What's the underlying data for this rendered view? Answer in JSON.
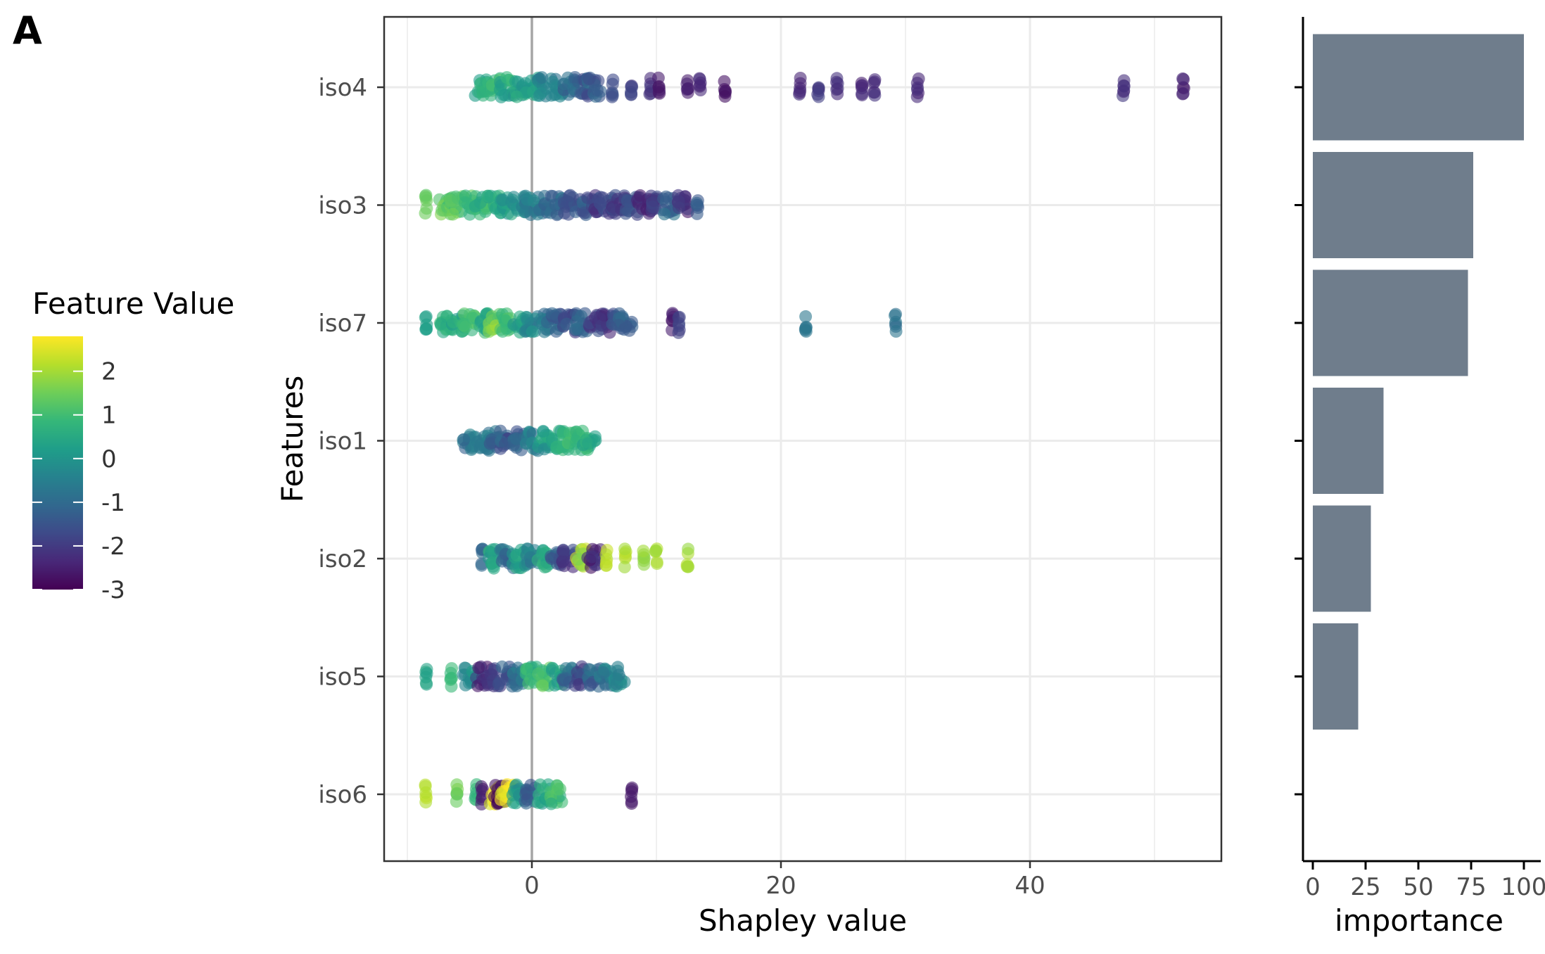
{
  "panel_label": "A",
  "colors": {
    "viridis_stops": [
      "#440154",
      "#482878",
      "#3e4a89",
      "#31688e",
      "#26828e",
      "#1f9e89",
      "#35b779",
      "#6ece58",
      "#b5de2b",
      "#fde725"
    ],
    "bar_fill": "#6f7d8c",
    "gridline": "#ebebeb",
    "zero_line": "#a6a6a6",
    "axis": "#000000",
    "tick_text": "#4d4d4d"
  },
  "chart_data": [
    {
      "type": "scatter",
      "subtype": "beeswarm / jittered strip (SHAP summary)",
      "xlabel": "Shapley value",
      "ylabel": "Features",
      "xlim": [
        -12,
        55
      ],
      "xticks": [
        0,
        20,
        40
      ],
      "x_minor_gridlines": [
        -10,
        10,
        30,
        50
      ],
      "vertical_reference_line_at": 0,
      "grid": true,
      "features": [
        "iso4",
        "iso3",
        "iso7",
        "iso1",
        "iso2",
        "iso5",
        "iso6"
      ],
      "color_legend": {
        "title": "Feature Value",
        "type": "continuous",
        "palette": "viridis",
        "range": [
          -3,
          2.8
        ],
        "ticks": [
          2,
          1,
          0,
          -1,
          -2,
          -3
        ],
        "placement": "left"
      },
      "series": [
        {
          "feature": "iso4",
          "min": -5,
          "max": 52.5,
          "dense_range": [
            -5,
            5.5
          ],
          "clusters": [
            {
              "x": -4,
              "fv": 0.4
            },
            {
              "x": -3,
              "fv": 0.8
            },
            {
              "x": -2,
              "fv": 0.5
            },
            {
              "x": -1,
              "fv": 0.2
            },
            {
              "x": 0,
              "fv": 0.1
            },
            {
              "x": 1,
              "fv": -0.3
            },
            {
              "x": 2,
              "fv": -0.6
            },
            {
              "x": 3,
              "fv": -1.0
            },
            {
              "x": 4,
              "fv": -1.4
            },
            {
              "x": 5,
              "fv": -1.3
            },
            {
              "x": 6.5,
              "fv": -1.6
            },
            {
              "x": 8,
              "fv": -1.9
            },
            {
              "x": 9.5,
              "fv": -2.2
            },
            {
              "x": 10.2,
              "fv": -2.6
            },
            {
              "x": 12.5,
              "fv": -2.5
            },
            {
              "x": 13.5,
              "fv": -2.3
            },
            {
              "x": 15.5,
              "fv": -2.7
            },
            {
              "x": 21.5,
              "fv": -2.3
            },
            {
              "x": 23,
              "fv": -2.0
            },
            {
              "x": 24.5,
              "fv": -2.2
            },
            {
              "x": 26.5,
              "fv": -2.4
            },
            {
              "x": 27.5,
              "fv": -2.2
            },
            {
              "x": 31,
              "fv": -2.3
            },
            {
              "x": 47.5,
              "fv": -2.2
            },
            {
              "x": 52.3,
              "fv": -2.4
            }
          ]
        },
        {
          "feature": "iso3",
          "min": -8.8,
          "max": 13.5,
          "dense_range": [
            -7,
            13
          ],
          "clusters": [
            {
              "x": -8.5,
              "fv": 1.4
            },
            {
              "x": -7,
              "fv": 1.3
            },
            {
              "x": -6,
              "fv": 1.2
            },
            {
              "x": -5,
              "fv": 1.0
            },
            {
              "x": -4,
              "fv": 0.8
            },
            {
              "x": -3,
              "fv": 0.5
            },
            {
              "x": -2,
              "fv": 0.2
            },
            {
              "x": -1,
              "fv": -0.2
            },
            {
              "x": 0,
              "fv": -0.6
            },
            {
              "x": 1,
              "fv": -0.9
            },
            {
              "x": 2,
              "fv": -1.2
            },
            {
              "x": 3,
              "fv": -1.6
            },
            {
              "x": 4,
              "fv": -1.4
            },
            {
              "x": 5,
              "fv": -1.9
            },
            {
              "x": 6,
              "fv": -1.7
            },
            {
              "x": 7,
              "fv": -2.0
            },
            {
              "x": 8,
              "fv": -1.8
            },
            {
              "x": 9,
              "fv": -2.2
            },
            {
              "x": 10,
              "fv": -2.0
            },
            {
              "x": 11,
              "fv": -1.1
            },
            {
              "x": 12,
              "fv": -2.4
            },
            {
              "x": 13.3,
              "fv": -1.3
            }
          ]
        },
        {
          "feature": "iso7",
          "min": -8.5,
          "max": 29.5,
          "dense_range": [
            -7,
            8
          ],
          "clusters": [
            {
              "x": -8.5,
              "fv": 0.3
            },
            {
              "x": -7,
              "fv": 0.6
            },
            {
              "x": -6,
              "fv": 0.5
            },
            {
              "x": -5,
              "fv": 0.9
            },
            {
              "x": -4,
              "fv": 0.6
            },
            {
              "x": -3,
              "fv": 1.6
            },
            {
              "x": -2,
              "fv": 0.9
            },
            {
              "x": -1,
              "fv": 0.2
            },
            {
              "x": 0,
              "fv": -0.3
            },
            {
              "x": 1,
              "fv": -0.8
            },
            {
              "x": 2,
              "fv": -1.2
            },
            {
              "x": 3,
              "fv": -1.6
            },
            {
              "x": 4,
              "fv": -1.3
            },
            {
              "x": 5,
              "fv": -1.9
            },
            {
              "x": 6,
              "fv": -2.1
            },
            {
              "x": 7,
              "fv": -1.5
            },
            {
              "x": 7.5,
              "fv": -1.2
            },
            {
              "x": 11.3,
              "fv": -2.6
            },
            {
              "x": 11.8,
              "fv": -1.8
            },
            {
              "x": 22,
              "fv": -0.8
            },
            {
              "x": 29.2,
              "fv": -0.9
            }
          ]
        },
        {
          "feature": "iso1",
          "min": -5.5,
          "max": 4.8,
          "dense_range": [
            -5.5,
            4.8
          ],
          "clusters": [
            {
              "x": -5,
              "fv": -0.8
            },
            {
              "x": -4,
              "fv": -0.6
            },
            {
              "x": -3,
              "fv": -1.0
            },
            {
              "x": -2,
              "fv": -1.4
            },
            {
              "x": -1,
              "fv": -1.2
            },
            {
              "x": 0,
              "fv": -0.5
            },
            {
              "x": 1,
              "fv": 0.2
            },
            {
              "x": 2,
              "fv": 0.5
            },
            {
              "x": 3,
              "fv": 0.7
            },
            {
              "x": 4,
              "fv": 0.9
            },
            {
              "x": 4.6,
              "fv": 0.6
            }
          ]
        },
        {
          "feature": "iso2",
          "min": -4,
          "max": 12.8,
          "dense_range": [
            -3,
            5
          ],
          "clusters": [
            {
              "x": -4,
              "fv": -1.1
            },
            {
              "x": -3,
              "fv": 0.3
            },
            {
              "x": -2,
              "fv": -0.9
            },
            {
              "x": -1,
              "fv": 0.2
            },
            {
              "x": 0,
              "fv": -0.6
            },
            {
              "x": 1,
              "fv": 0.4
            },
            {
              "x": 2,
              "fv": -1.2
            },
            {
              "x": 3,
              "fv": -2.0
            },
            {
              "x": 4,
              "fv": 2.0
            },
            {
              "x": 5,
              "fv": -2.3
            },
            {
              "x": 6,
              "fv": 2.2
            },
            {
              "x": 7.5,
              "fv": 2.1
            },
            {
              "x": 9,
              "fv": 1.9
            },
            {
              "x": 10,
              "fv": 2.0
            },
            {
              "x": 12.5,
              "fv": 2.0
            }
          ]
        },
        {
          "feature": "iso5",
          "min": -8.5,
          "max": 7.5,
          "dense_range": [
            -5,
            7.5
          ],
          "clusters": [
            {
              "x": -8.5,
              "fv": 0.4
            },
            {
              "x": -6.5,
              "fv": 0.9
            },
            {
              "x": -5,
              "fv": -0.2
            },
            {
              "x": -4,
              "fv": -2.3
            },
            {
              "x": -3,
              "fv": -2.0
            },
            {
              "x": -2,
              "fv": -1.5
            },
            {
              "x": -1,
              "fv": -0.8
            },
            {
              "x": 0,
              "fv": 0.6
            },
            {
              "x": 1,
              "fv": 1.2
            },
            {
              "x": 2,
              "fv": 0.3
            },
            {
              "x": 3,
              "fv": -1.0
            },
            {
              "x": 4,
              "fv": -1.8
            },
            {
              "x": 5,
              "fv": -1.2
            },
            {
              "x": 6,
              "fv": -0.6
            },
            {
              "x": 7,
              "fv": -0.3
            }
          ]
        },
        {
          "feature": "iso6",
          "min": -8.5,
          "max": 8,
          "dense_range": [
            -3,
            2.5
          ],
          "clusters": [
            {
              "x": -8.5,
              "fv": 2.2
            },
            {
              "x": -6,
              "fv": 1.5
            },
            {
              "x": -4.5,
              "fv": 0.8
            },
            {
              "x": -4,
              "fv": -2.6
            },
            {
              "x": -3,
              "fv": 2.5
            },
            {
              "x": -2.5,
              "fv": -2.8
            },
            {
              "x": -2,
              "fv": 2.7
            },
            {
              "x": -1,
              "fv": 0.2
            },
            {
              "x": 0,
              "fv": -1.2
            },
            {
              "x": 1,
              "fv": 0.3
            },
            {
              "x": 2,
              "fv": 0.9
            },
            {
              "x": 8,
              "fv": -2.6
            }
          ]
        }
      ]
    },
    {
      "type": "bar",
      "orientation": "horizontal",
      "xlabel": "importance",
      "ylabel": "",
      "xlim": [
        -2,
        104
      ],
      "xticks": [
        0,
        25,
        50,
        75,
        100
      ],
      "categories": [
        "iso4",
        "iso3",
        "iso7",
        "iso1",
        "iso2",
        "iso5",
        "iso6"
      ],
      "values": [
        100,
        76,
        73.5,
        33.5,
        27.5,
        21.5,
        0
      ],
      "grid": false
    }
  ]
}
